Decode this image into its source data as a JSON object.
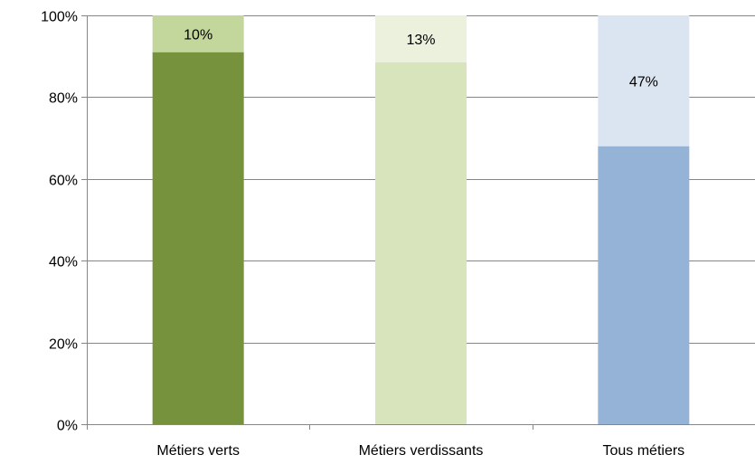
{
  "chart_data": {
    "type": "bar",
    "stacked": true,
    "percent_stacked": true,
    "categories": [
      "Métiers verts",
      "Métiers verdissants",
      "Tous métiers"
    ],
    "series": [
      {
        "values": [
          91,
          88.5,
          68
        ],
        "colors": [
          "#76923c",
          "#d7e4bc",
          "#95b3d7"
        ]
      },
      {
        "values": [
          9,
          11.5,
          32
        ],
        "colors": [
          "#c3d69b",
          "#ebf1dd",
          "#dbe5f1"
        ]
      }
    ],
    "data_labels": [
      "10%",
      "13%",
      "47%"
    ],
    "y_ticks": [
      "0%",
      "20%",
      "40%",
      "60%",
      "80%",
      "100%"
    ],
    "ylim": [
      0,
      100
    ],
    "grid": true,
    "legend": "none"
  }
}
